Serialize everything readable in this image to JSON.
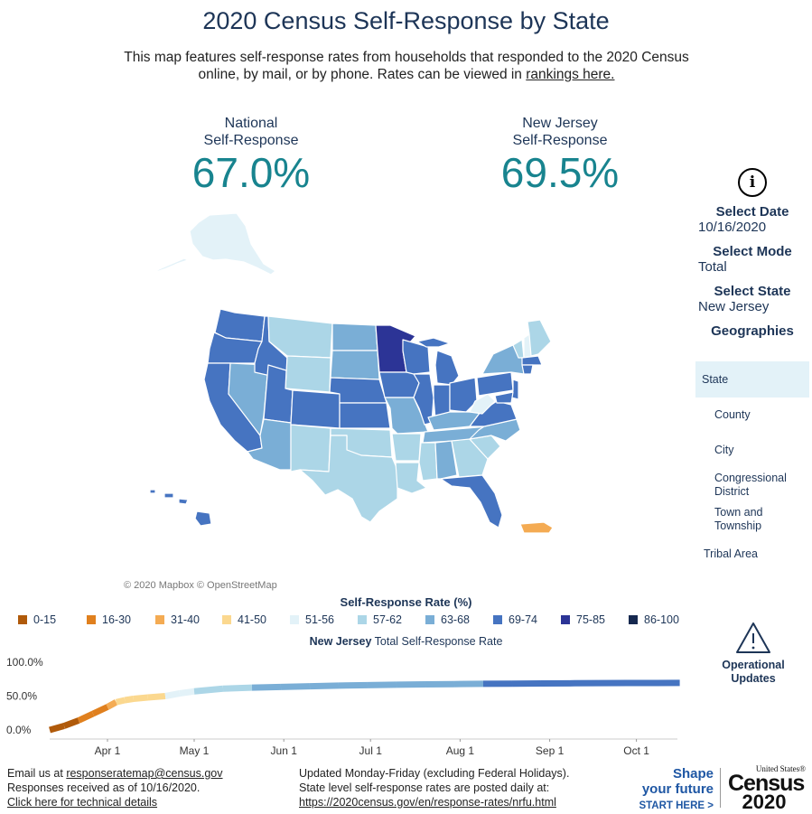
{
  "title": "2020 Census Self-Response by State",
  "subtitle": {
    "text": "This map features self-response rates from households that responded to the 2020 Census online, by mail, or by phone. Rates can be viewed in",
    "link": "rankings here."
  },
  "stats": {
    "national": {
      "label_line1": "National",
      "label_line2": "Self-Response",
      "value": "67.0%"
    },
    "state": {
      "label_line1": "New Jersey",
      "label_line2": "Self-Response",
      "value": "69.5%"
    }
  },
  "map": {
    "credit": "© 2020 Mapbox © OpenStreetMap",
    "colors": {
      "alaska": "#e3f2f8",
      "west": "#4674c1",
      "mid": "#7aaed6",
      "light": "#acd6e7",
      "pale": "#e3f2f8",
      "dark": "#2c3496",
      "orange": "#f4ab53",
      "border": "#ffffff"
    }
  },
  "side": {
    "info_icon": "info-circle-icon",
    "select_date_label": "Select Date",
    "select_date_value": "10/16/2020",
    "select_mode_label": "Select Mode",
    "select_mode_value": "Total",
    "select_state_label": "Select State",
    "select_state_value": "New Jersey",
    "geographies_label": "Geographies",
    "geographies": [
      "State",
      "County",
      "City",
      "Congressional District",
      "Town and Township",
      "Tribal Area"
    ],
    "selected_bg": "#e3f2f8"
  },
  "legend": {
    "title": "Self-Response Rate (%)",
    "items": [
      {
        "label": "0-15",
        "color": "#b05a0a"
      },
      {
        "label": "16-30",
        "color": "#e0801e"
      },
      {
        "label": "31-40",
        "color": "#f4ab53"
      },
      {
        "label": "41-50",
        "color": "#fbd88f"
      },
      {
        "label": "51-56",
        "color": "#e3f2f8"
      },
      {
        "label": "57-62",
        "color": "#acd6e7"
      },
      {
        "label": "63-68",
        "color": "#7aaed6"
      },
      {
        "label": "69-74",
        "color": "#4674c1"
      },
      {
        "label": "75-85",
        "color": "#2c3496"
      },
      {
        "label": "86-100",
        "color": "#15284f"
      }
    ]
  },
  "trend": {
    "title_bold": "New Jersey",
    "title_rest": "Total Self-Response Rate"
  },
  "chart_data": {
    "type": "line",
    "title": "New Jersey Total Self-Response Rate",
    "ytick_labels": [
      "100.0%",
      "50.0%",
      "0.0%"
    ],
    "xtick_labels": [
      "Apr 1",
      "May 1",
      "Jun 1",
      "Jul 1",
      "Aug 1",
      "Sep 1",
      "Oct 1"
    ],
    "ylim": [
      0,
      100
    ],
    "x_day": [
      -20,
      -15,
      -10,
      -5,
      0,
      3,
      6,
      9,
      14,
      20,
      25,
      30,
      40,
      50,
      60,
      70,
      80,
      90,
      100,
      110,
      120,
      130,
      140,
      150,
      160,
      170,
      180,
      190,
      198
    ],
    "y_pct": [
      0,
      6,
      14,
      24,
      34,
      41,
      44,
      46,
      48,
      50,
      54,
      57,
      61,
      62.5,
      63.5,
      64.5,
      65.5,
      66.2,
      66.8,
      67.3,
      67.7,
      68.1,
      68.4,
      68.7,
      68.9,
      69.1,
      69.3,
      69.4,
      69.5
    ],
    "xtick_days": [
      0,
      30,
      61,
      91,
      122,
      153,
      183
    ]
  },
  "operational_updates": {
    "line1": "Operational",
    "line2": "Updates",
    "icon": "warning-triangle-icon"
  },
  "footer": {
    "email_prefix": "Email us at ",
    "email": "responseratemap@census.gov",
    "received": "Responses received as of 10/16/2020.",
    "tech_link": "Click here for technical details",
    "updated": "Updated Monday-Friday (excluding Federal Holidays).",
    "posted": "State level self-response rates are posted daily at:",
    "url": "https://2020census.gov/en/response-rates/nrfu.html",
    "shape1": "Shape",
    "shape2": "your future",
    "shape3": "START HERE >",
    "logo_small": "United States®",
    "logo_word": "Census",
    "logo_year": "2020"
  }
}
